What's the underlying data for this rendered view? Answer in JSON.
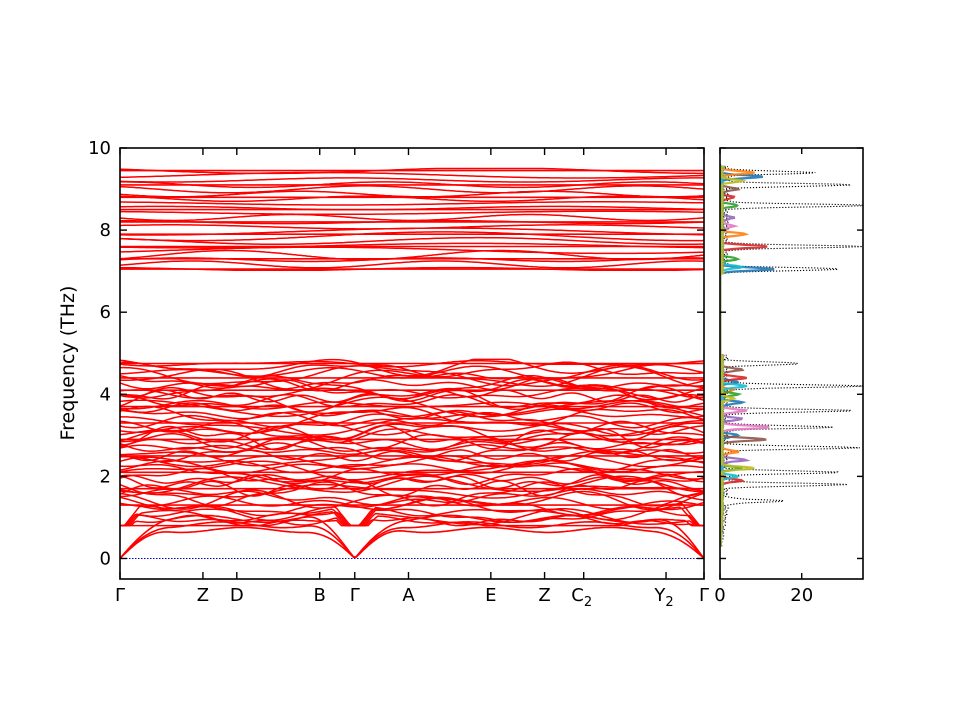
{
  "chart_data": [
    {
      "type": "line",
      "title": "",
      "xlabel": "",
      "ylabel": "Frequency (THz)",
      "ylim": [
        -0.5,
        10
      ],
      "yticks": [
        0,
        2,
        4,
        6,
        8,
        10
      ],
      "high_symmetry_points": [
        {
          "label": "Γ",
          "sub": "",
          "x": 0.0
        },
        {
          "label": "Z",
          "sub": "",
          "x": 0.142
        },
        {
          "label": "D",
          "sub": "",
          "x": 0.2
        },
        {
          "label": "B",
          "sub": "",
          "x": 0.342
        },
        {
          "label": "Γ",
          "sub": "",
          "x": 0.402
        },
        {
          "label": "A",
          "sub": "",
          "x": 0.494
        },
        {
          "label": "E",
          "sub": "",
          "x": 0.635
        },
        {
          "label": "Z",
          "sub": "",
          "x": 0.727
        },
        {
          "label": "C",
          "sub": "2",
          "x": 0.794
        },
        {
          "label": "Y",
          "sub": "2",
          "x": 0.935
        },
        {
          "label": "Γ",
          "sub": "",
          "x": 1.0
        }
      ],
      "band_color": "#ff0000",
      "zero_line_color": "#0000cc",
      "acoustic_branch_max": 1.05,
      "lower_band_group": {
        "min": 0.0,
        "max": 4.85,
        "approx_branches": 55
      },
      "upper_band_group": {
        "min": 7.0,
        "max": 9.5,
        "approx_branches": 22
      },
      "gap": [
        4.85,
        7.0
      ],
      "representative_levels": [
        1.3,
        1.7,
        2.1,
        2.5,
        2.9,
        3.3,
        3.7,
        4.1,
        4.4,
        4.75,
        7.05,
        7.3,
        7.6,
        7.9,
        8.2,
        8.5,
        8.8,
        9.1,
        9.45
      ]
    },
    {
      "type": "line",
      "title": "",
      "xlabel": "",
      "ylabel": "",
      "xlim": [
        0,
        35
      ],
      "xticks": [
        0,
        20
      ],
      "ylim": [
        -0.5,
        10
      ],
      "orientation": "horizontal-dos",
      "series": [
        {
          "color": "#000000",
          "style": "dotted",
          "peaks": [
            [
              1.4,
              14
            ],
            [
              1.8,
              30
            ],
            [
              2.1,
              28
            ],
            [
              2.7,
              33
            ],
            [
              3.2,
              26
            ],
            [
              3.6,
              31
            ],
            [
              4.2,
              33
            ],
            [
              4.75,
              19
            ],
            [
              7.05,
              29
            ],
            [
              7.6,
              33
            ],
            [
              8.6,
              35
            ],
            [
              9.1,
              31
            ],
            [
              9.4,
              22
            ]
          ]
        },
        {
          "color": "#1f77b4",
          "style": "solid",
          "peaks": [
            [
              3.0,
              4
            ],
            [
              3.8,
              5
            ],
            [
              4.3,
              4
            ],
            [
              7.05,
              13
            ],
            [
              9.3,
              10
            ]
          ]
        },
        {
          "color": "#ff7f0e",
          "style": "solid",
          "peaks": [
            [
              2.6,
              4
            ],
            [
              4.1,
              3
            ],
            [
              7.9,
              6
            ],
            [
              9.4,
              8
            ]
          ]
        },
        {
          "color": "#2ca02c",
          "style": "solid",
          "peaks": [
            [
              2.2,
              5
            ],
            [
              4.0,
              4
            ],
            [
              7.3,
              4
            ],
            [
              8.6,
              4
            ]
          ]
        },
        {
          "color": "#d62728",
          "style": "solid",
          "peaks": [
            [
              1.9,
              5
            ],
            [
              4.4,
              6
            ],
            [
              7.6,
              11
            ],
            [
              8.8,
              3
            ]
          ]
        },
        {
          "color": "#9467bd",
          "style": "solid",
          "peaks": [
            [
              2.4,
              6
            ],
            [
              3.4,
              5
            ],
            [
              8.3,
              3
            ]
          ]
        },
        {
          "color": "#8c564b",
          "style": "solid",
          "peaks": [
            [
              2.9,
              11
            ],
            [
              4.6,
              5
            ],
            [
              9.0,
              4
            ]
          ]
        },
        {
          "color": "#e377c2",
          "style": "solid",
          "peaks": [
            [
              3.2,
              12
            ],
            [
              3.6,
              6
            ],
            [
              8.1,
              3
            ]
          ]
        },
        {
          "color": "#17becf",
          "style": "solid",
          "peaks": [
            [
              2.0,
              4
            ],
            [
              4.2,
              6
            ],
            [
              7.1,
              5
            ]
          ]
        },
        {
          "color": "#bcbd22",
          "style": "solid",
          "peaks": [
            [
              2.2,
              8
            ],
            [
              3.9,
              3
            ],
            [
              9.2,
              5
            ]
          ]
        }
      ]
    }
  ]
}
